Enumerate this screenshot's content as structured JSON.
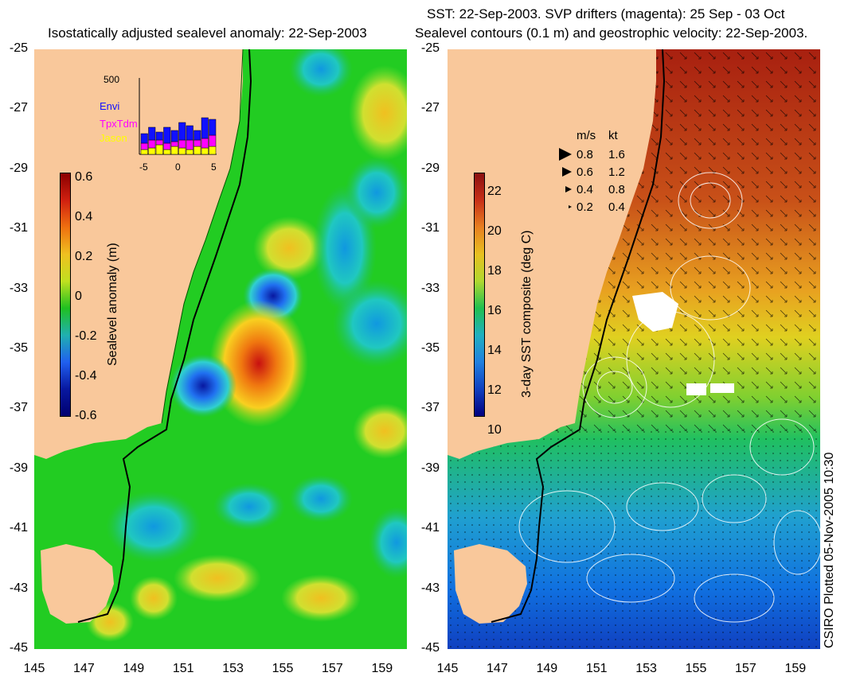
{
  "left": {
    "title": "Isostatically adjusted sealevel anomaly: 22-Sep-2003",
    "colorbar_label": "Sealevel anomaly (m)",
    "colorbar_ticks": [
      "0.6",
      "0.4",
      "0.2",
      "0",
      "-0.2",
      "-0.4",
      "-0.6"
    ],
    "inset": {
      "ymax_label": "500",
      "legend": [
        {
          "name": "Envi",
          "color": "#1010ff"
        },
        {
          "name": "TpxTdm",
          "color": "#ff00ff"
        },
        {
          "name": "Jason",
          "color": "#ffff00"
        }
      ],
      "xticks": [
        "-5",
        "0",
        "5"
      ]
    }
  },
  "right": {
    "title_line1": "SST: 22-Sep-2003. SVP drifters (magenta): 25 Sep - 03 Oct",
    "title_line2": "Sealevel contours (0.1 m) and geostrophic velocity: 22-Sep-2003.",
    "colorbar_label": "3-day SST composite (deg C)",
    "colorbar_ticks": [
      "22",
      "20",
      "18",
      "16",
      "14",
      "12",
      "10"
    ],
    "speed_header": {
      "ms": "m/s",
      "kt": "kt"
    },
    "speed_rows": [
      {
        "ms": "0.8",
        "kt": "1.6"
      },
      {
        "ms": "0.6",
        "kt": "1.2"
      },
      {
        "ms": "0.4",
        "kt": "0.8"
      },
      {
        "ms": "0.2",
        "kt": "0.4"
      }
    ]
  },
  "y_ticks": [
    "-25",
    "-27",
    "-29",
    "-31",
    "-33",
    "-35",
    "-37",
    "-39",
    "-41",
    "-43",
    "-45"
  ],
  "x_ticks": [
    "145",
    "147",
    "149",
    "151",
    "153",
    "155",
    "157",
    "159"
  ],
  "credit": "CSIRO Plotted 05-Nov-2005 10:30",
  "colors": {
    "land": "#f9c89b",
    "anomaly_background": "#22cc22",
    "sst_warm": "#b52a10",
    "sst_cold": "#1040c0",
    "coastline": "#000000"
  }
}
